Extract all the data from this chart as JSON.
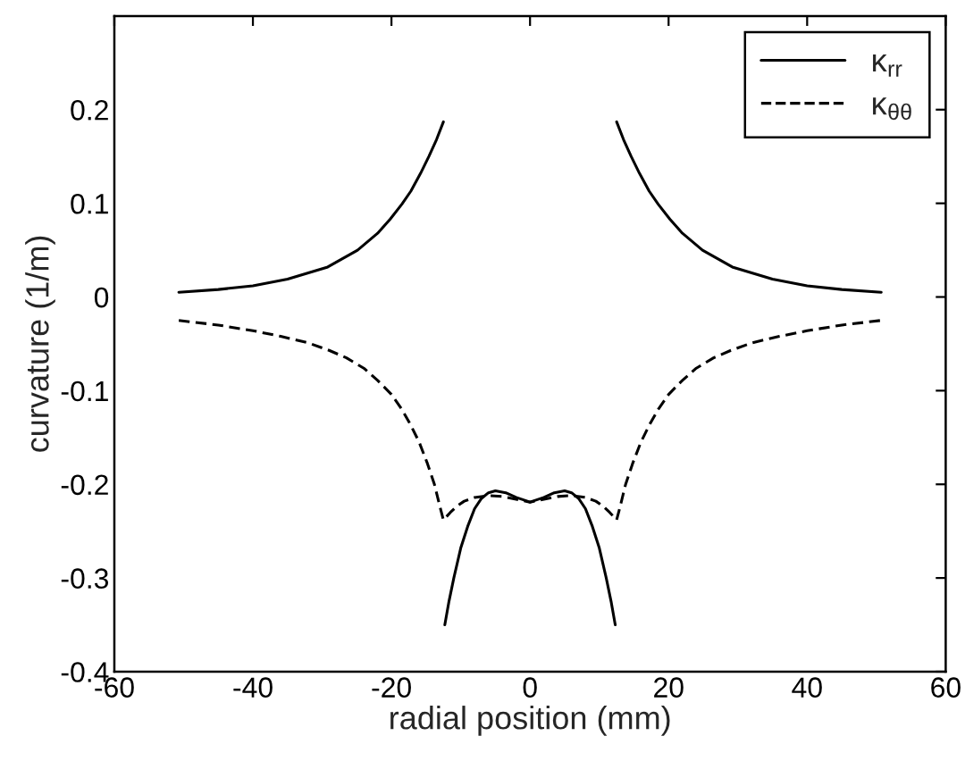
{
  "chart_data": {
    "type": "line",
    "xlabel": "radial position (mm)",
    "ylabel": "curvature (1/m)",
    "xlim": [
      -60,
      60
    ],
    "xticks": [
      -60,
      -40,
      -20,
      0,
      20,
      40,
      60
    ],
    "ylim": [
      -0.4,
      0.3
    ],
    "yticks": [
      -0.4,
      -0.3,
      -0.2,
      -0.1,
      0,
      0.1,
      0.2
    ],
    "legend": "top right",
    "series": [
      {
        "name": "κ$_{rr}$",
        "color": "#000000",
        "line_style": "solid",
        "x": [
          -50.7,
          -45,
          -40,
          -35,
          -29.2,
          -24.9,
          -22,
          -20.2,
          -18.5,
          -17.2,
          -15.8,
          -14.6,
          -13.5,
          -12.5,
          -12.4,
          -12.3,
          -11.7,
          -11,
          -10,
          -9,
          -8,
          -7,
          -6,
          -5,
          -3.5,
          -2,
          0,
          2,
          3.5,
          5,
          6,
          7,
          8,
          9,
          10,
          11,
          11.7,
          12.3,
          12.4,
          12.5,
          13.5,
          14.6,
          15.8,
          17.2,
          18.5,
          20.2,
          22,
          24.9,
          29.2,
          35,
          40,
          45,
          50.7
        ],
        "values": [
          0.005,
          0.008,
          0.012,
          0.019,
          0.032,
          0.05,
          0.068,
          0.083,
          0.099,
          0.113,
          0.132,
          0.15,
          0.168,
          0.187,
          null,
          -0.35,
          -0.325,
          -0.3,
          -0.268,
          -0.245,
          -0.226,
          -0.215,
          -0.209,
          -0.207,
          -0.209,
          -0.214,
          -0.219,
          -0.214,
          -0.209,
          -0.207,
          -0.209,
          -0.215,
          -0.226,
          -0.245,
          -0.268,
          -0.3,
          -0.325,
          -0.35,
          null,
          0.187,
          0.168,
          0.15,
          0.132,
          0.113,
          0.099,
          0.083,
          0.068,
          0.05,
          0.032,
          0.019,
          0.012,
          0.008,
          0.005
        ]
      },
      {
        "name": "κ$_{θθ}$",
        "color": "#000000",
        "line_style": "dashed",
        "x": [
          -50.7,
          -45,
          -40,
          -36,
          -32,
          -29,
          -26.5,
          -24,
          -22,
          -20,
          -18.5,
          -17.2,
          -16,
          -14.8,
          -13.8,
          -13,
          -12.5,
          -11.5,
          -10.5,
          -9.5,
          -8,
          -6,
          -4,
          -2,
          0,
          2,
          4,
          6,
          8,
          9.5,
          10.5,
          11.5,
          12.5,
          13,
          13.8,
          14.8,
          16,
          17.2,
          18.5,
          20,
          22,
          24,
          26.5,
          29,
          32,
          36,
          40,
          45,
          50.7
        ],
        "values": [
          -0.025,
          -0.03,
          -0.036,
          -0.042,
          -0.049,
          -0.057,
          -0.065,
          -0.076,
          -0.089,
          -0.104,
          -0.12,
          -0.137,
          -0.155,
          -0.178,
          -0.2,
          -0.224,
          -0.238,
          -0.23,
          -0.223,
          -0.218,
          -0.214,
          -0.212,
          -0.213,
          -0.216,
          -0.219,
          -0.216,
          -0.213,
          -0.212,
          -0.214,
          -0.218,
          -0.223,
          -0.23,
          -0.238,
          -0.224,
          -0.2,
          -0.178,
          -0.155,
          -0.137,
          -0.12,
          -0.104,
          -0.089,
          -0.076,
          -0.065,
          -0.057,
          -0.049,
          -0.042,
          -0.036,
          -0.03,
          -0.025
        ]
      }
    ]
  }
}
